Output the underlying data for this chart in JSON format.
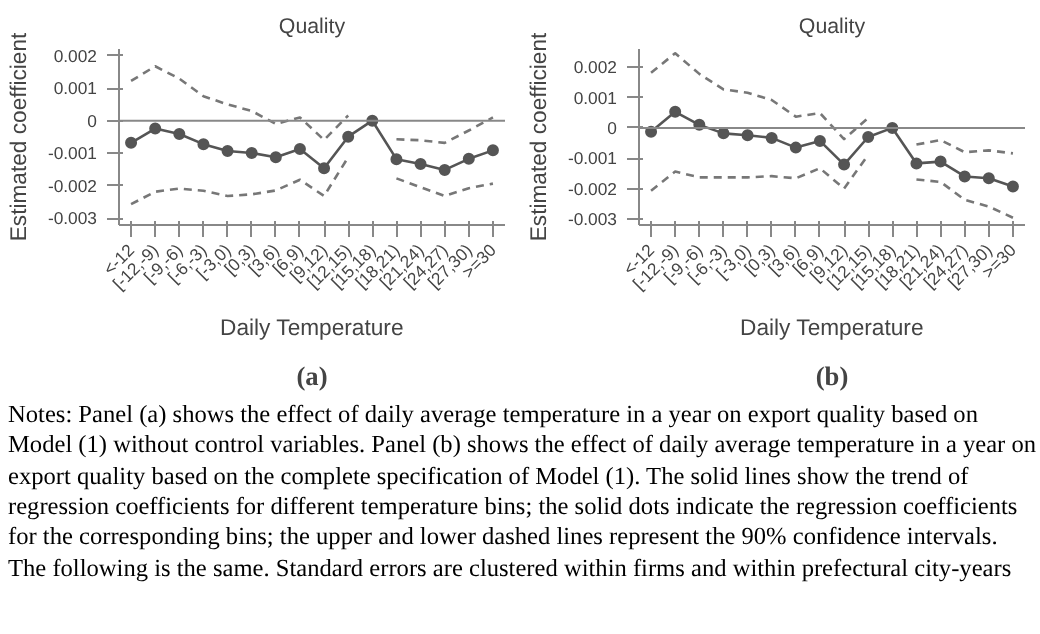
{
  "chart_data": [
    {
      "type": "line",
      "title": "Quality",
      "xlabel": "Daily Temperature",
      "ylabel": "Estimated coefficient",
      "categories": [
        "<-12",
        "[-12,-9)",
        "[-9,-6)",
        "[-6,-3)",
        "[-3,0)",
        "[0,3)",
        "[3,6)",
        "[6,9)",
        "[9,12)",
        "[12,15)",
        "[15,18)",
        "[18,21)",
        "[21,24)",
        "[24,27)",
        "[27,30)",
        ">=30"
      ],
      "series": [
        {
          "color": "#555555",
          "line_style": "solid",
          "marker": "circle",
          "values": [
            -0.00068,
            -0.00024,
            -0.00041,
            -0.00072,
            -0.00093,
            -0.00099,
            -0.00112,
            -0.00087,
            -0.00146,
            -0.00049,
            0,
            -0.00118,
            -0.00133,
            -0.00151,
            -0.00117,
            -0.00091
          ]
        },
        {
          "color": "#777777",
          "line_style": "dashed",
          "marker": "none",
          "values": [
            0.00122,
            0.00167,
            0.00129,
            0.00075,
            0.0005,
            0.0003,
            -0.0001,
            0.0001,
            -0.00059,
            0.00016,
            null,
            -0.00057,
            -0.0006,
            -0.00068,
            -0.0003,
            0.0001
          ]
        },
        {
          "color": "#777777",
          "line_style": "dashed",
          "marker": "none",
          "values": [
            -0.00256,
            -0.00218,
            -0.00208,
            -0.00215,
            -0.00231,
            -0.00226,
            -0.00214,
            -0.00181,
            -0.00231,
            -0.00112,
            null,
            -0.00177,
            -0.00204,
            -0.00231,
            -0.00207,
            -0.00193
          ]
        }
      ],
      "ylim": [
        -0.0032,
        0.0022
      ],
      "yticks": [
        -0.003,
        -0.002,
        -0.001,
        0,
        0.001,
        0.002
      ],
      "ref_lines": [
        {
          "axis": "y",
          "value": 0,
          "color": "#888888"
        }
      ],
      "grid": false,
      "annotations": [
        "(a)"
      ]
    },
    {
      "type": "line",
      "title": "Quality",
      "xlabel": "Daily Temperature",
      "ylabel": "Estimated coefficient",
      "categories": [
        "<-12",
        "[-12,-9)",
        "[-9,-6)",
        "[-6,-3)",
        "[-3,0)",
        "[0,3)",
        "[3,6)",
        "[6,9)",
        "[9,12)",
        "[12,15)",
        "[15,18)",
        "[18,21)",
        "[21,24)",
        "[24,27)",
        "[27,30)",
        ">=30"
      ],
      "series": [
        {
          "color": "#555555",
          "line_style": "solid",
          "marker": "circle",
          "values": [
            -0.00013,
            0.00053,
            0.0001,
            -0.00018,
            -0.00024,
            -0.00033,
            -0.00065,
            -0.00043,
            -0.00121,
            -0.0003,
            0,
            -0.00117,
            -0.00111,
            -0.0016,
            -0.00166,
            -0.00193
          ]
        },
        {
          "color": "#777777",
          "line_style": "dashed",
          "marker": "none",
          "values": [
            0.00182,
            0.00246,
            0.00178,
            0.00127,
            0.00116,
            0.00092,
            0.00037,
            0.00049,
            -0.00037,
            0.00033,
            null,
            -0.00055,
            -0.0004,
            -0.0008,
            -0.00074,
            -0.00084
          ]
        },
        {
          "color": "#777777",
          "line_style": "dashed",
          "marker": "none",
          "values": [
            -0.00207,
            -0.00144,
            -0.00163,
            -0.00163,
            -0.00163,
            -0.00159,
            -0.00166,
            -0.00133,
            -0.002,
            -0.00089,
            null,
            -0.0017,
            -0.00178,
            -0.00237,
            -0.00259,
            -0.00296
          ]
        }
      ],
      "ylim": [
        -0.0032,
        0.0026
      ],
      "yticks": [
        -0.003,
        -0.002,
        -0.001,
        0,
        0.001,
        0.002
      ],
      "ref_lines": [
        {
          "axis": "y",
          "value": 0,
          "color": "#888888"
        }
      ],
      "grid": false,
      "annotations": [
        "(b)",
        "Notes: Panel (a) shows the effect of daily average temperature in a year on export quality based on Model (1) without control variables. Panel (b) shows the effect of daily average temperature in a year on export quality based on the complete specification of Model (1). The solid lines show the trend of regression coefficients for different temperature bins; the solid dots indicate the regression coefficients for the corresponding bins; the upper and lower dashed lines represent the 90% confidence intervals. The following is the same. Standard errors are clustered within firms and within prefectural city-years"
      ]
    }
  ]
}
